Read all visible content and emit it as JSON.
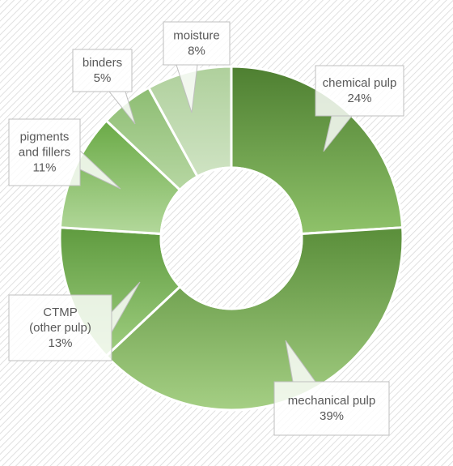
{
  "chart_data": {
    "type": "pie",
    "donut": true,
    "series": [
      {
        "name": "",
        "values": [
          24,
          39,
          13,
          11,
          5,
          8
        ]
      }
    ],
    "categories": [
      "chemical pulp",
      "mechanical pulp",
      "CTMP (other pulp)",
      "pigments and fillers",
      "binders",
      "moisture"
    ],
    "slices": [
      {
        "label_lines": [
          "chemical pulp"
        ],
        "percent_text": "24%",
        "value": 24,
        "color_dark": "#4e7f31",
        "color_light": "#8fc26a"
      },
      {
        "label_lines": [
          "mechanical pulp"
        ],
        "percent_text": "39%",
        "value": 39,
        "color_dark": "#5a8e3a",
        "color_light": "#a5cf84"
      },
      {
        "label_lines": [
          "CTMP",
          "(other pulp)"
        ],
        "percent_text": "13%",
        "value": 13,
        "color_dark": "#5f9b3f",
        "color_light": "#9fce80"
      },
      {
        "label_lines": [
          "pigments",
          "and fillers"
        ],
        "percent_text": "11%",
        "value": 11,
        "color_dark": "#6aaa46",
        "color_light": "#b3d89b"
      },
      {
        "label_lines": [
          "binders"
        ],
        "percent_text": "5%",
        "value": 5,
        "color_dark": "#8dbd72",
        "color_light": "#b7d7a3"
      },
      {
        "label_lines": [
          "moisture"
        ],
        "percent_text": "8%",
        "value": 8,
        "color_dark": "#afd09c",
        "color_light": "#cfe3c3"
      }
    ],
    "title": "",
    "legend": "none",
    "background": "diagonal-hatch",
    "start_angle_deg": 0
  }
}
